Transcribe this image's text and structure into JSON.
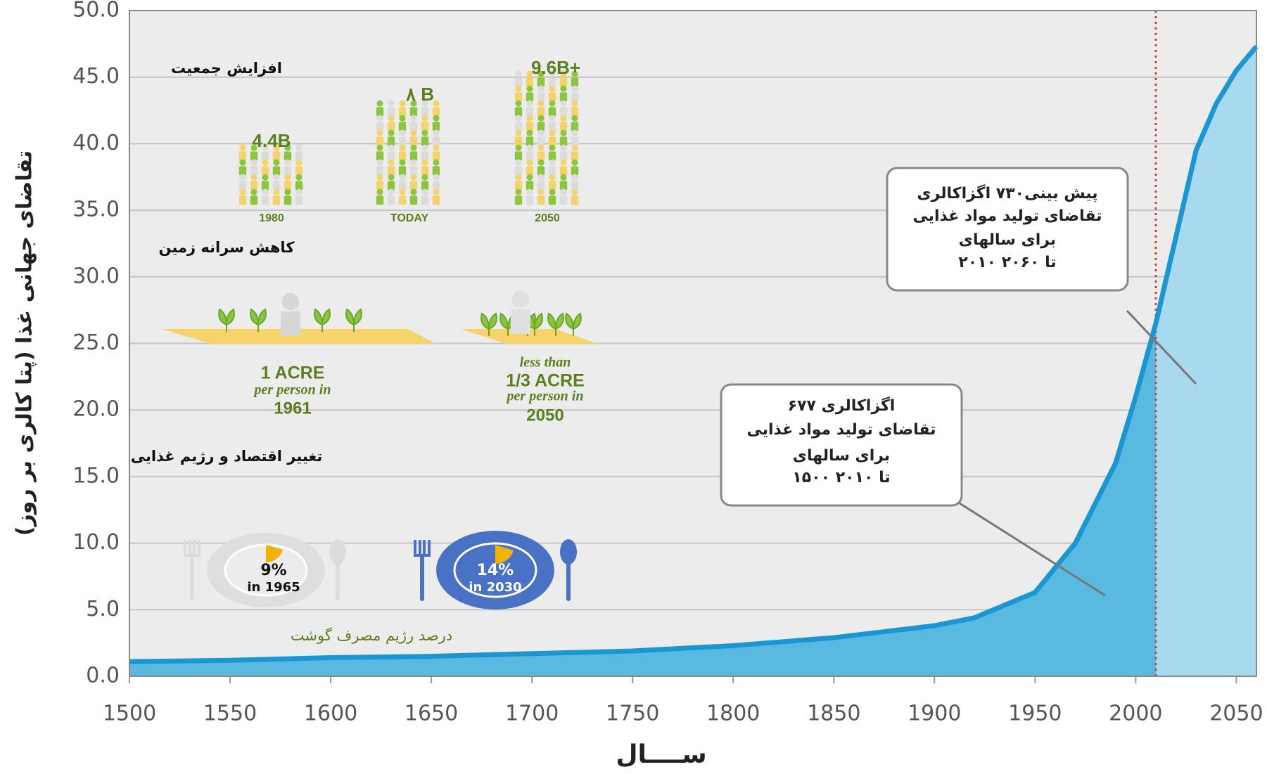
{
  "chart_data": {
    "type": "area",
    "y_label": "تقاضای جهانی غذا (پتا کالری بر روز)",
    "x_label": "ســــال",
    "x": [
      1500,
      1550,
      1600,
      1650,
      1700,
      1750,
      1800,
      1850,
      1900,
      1920,
      1950,
      1970,
      1990,
      2000,
      2010,
      2020,
      2030,
      2040,
      2050,
      2060
    ],
    "series": [
      {
        "color": "#1a96d2",
        "values": [
          1.1,
          1.2,
          1.4,
          1.5,
          1.7,
          1.9,
          2.3,
          2.9,
          3.8,
          4.4,
          6.3,
          10,
          16,
          21,
          26.5,
          33,
          39.5,
          43,
          45.5,
          47.3
        ]
      }
    ],
    "area_colors": [
      "#5ab9e0",
      "#a8d9ee"
    ],
    "reference_line_x": 2010,
    "reference_line_color": "#d0403c",
    "xlim": [
      1500,
      2060
    ],
    "xticks": [
      1500,
      1550,
      1600,
      1650,
      1700,
      1750,
      1800,
      1850,
      1900,
      1950,
      2000,
      2050
    ],
    "ylim": [
      0,
      50
    ],
    "yticks": [
      {
        "value": 0,
        "label": "0.0"
      },
      {
        "value": 5,
        "label": "5.0"
      },
      {
        "value": 10,
        "label": "10.0"
      },
      {
        "value": 15,
        "label": "15.0"
      },
      {
        "value": 20,
        "label": "20.0"
      },
      {
        "value": 25,
        "label": "25.0"
      },
      {
        "value": 30,
        "label": "30.0"
      },
      {
        "value": 35,
        "label": "35.0"
      },
      {
        "value": 40,
        "label": "40.0"
      },
      {
        "value": 45,
        "label": "45.0"
      },
      {
        "value": 50,
        "label": "50.0"
      }
    ],
    "grid": true,
    "annotations": [
      {
        "text": "افزایش جمعیت"
      },
      {
        "text": "4.4B"
      },
      {
        "text": "۸ B"
      },
      {
        "text": "9.6B+"
      },
      {
        "text": "1980"
      },
      {
        "text": "TODAY"
      },
      {
        "text": "2050"
      },
      {
        "text": "کاهش سرانه زمین"
      },
      {
        "text": "1 ACRE"
      },
      {
        "text": "per person in"
      },
      {
        "text": "1961"
      },
      {
        "text": "less than"
      },
      {
        "text": "1/3 ACRE"
      },
      {
        "text": "per person in"
      },
      {
        "text": "2050"
      },
      {
        "text": "تغییر اقتصاد و رژیم غذایی"
      },
      {
        "text": "9%"
      },
      {
        "text": "in 1965"
      },
      {
        "text": "14%"
      },
      {
        "text": "in 2030"
      },
      {
        "text": "درصد رژیم مصرف گوشت"
      }
    ],
    "callouts": [
      {
        "lines": [
          "پیش بینی۷۳۰ اگزاکالری",
          "تقاضای تولید مواد غذایی",
          "برای  سالهای",
          "۲۰۱۰ تا ۲۰۶۰"
        ]
      },
      {
        "lines": [
          "۶۷۷ اگزاکالری",
          "تقاضای تولید مواد غذایی",
          "برای  سالهای",
          "۱۵۰۰ تا ۲۰۱۰"
        ]
      }
    ]
  }
}
